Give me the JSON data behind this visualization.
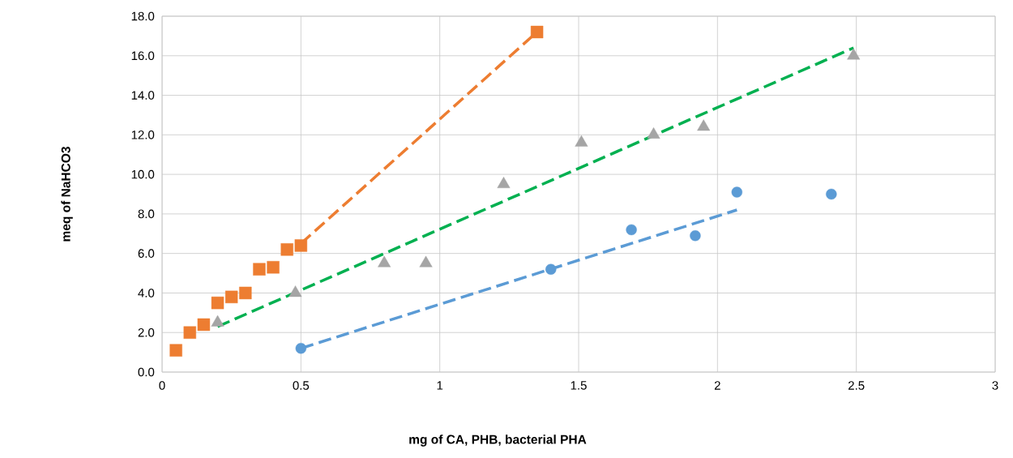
{
  "chart_data": {
    "type": "scatter",
    "xlabel": "mg of CA, PHB, bacterial PHA",
    "ylabel": "meq of NaHCO3",
    "xlim": [
      0,
      3
    ],
    "ylim": [
      0,
      18
    ],
    "xticks": [
      0,
      0.5,
      1,
      1.5,
      2,
      2.5,
      3
    ],
    "yticks": [
      {
        "value": 0,
        "label": "0.0"
      },
      {
        "value": 2,
        "label": "2.0"
      },
      {
        "value": 4,
        "label": "4.0"
      },
      {
        "value": 6,
        "label": "6.0"
      },
      {
        "value": 8,
        "label": "8.0"
      },
      {
        "value": 10,
        "label": "10.0"
      },
      {
        "value": 12,
        "label": "12.0"
      },
      {
        "value": 14,
        "label": "14.0"
      },
      {
        "value": 16,
        "label": "16.0"
      },
      {
        "value": 18,
        "label": "18.0"
      }
    ],
    "grid": true,
    "series": [
      {
        "marker": "square",
        "color": "#ed7d31",
        "x": [
          0.05,
          0.1,
          0.15,
          0.2,
          0.25,
          0.3,
          0.35,
          0.4,
          0.45,
          0.5,
          1.35
        ],
        "values": [
          1.1,
          2.0,
          2.4,
          3.5,
          3.8,
          4.0,
          5.2,
          5.3,
          6.2,
          6.4,
          17.2
        ]
      },
      {
        "marker": "triangle",
        "color": "#a5a5a5",
        "x": [
          0.2,
          0.48,
          0.8,
          0.95,
          1.23,
          1.51,
          1.77,
          1.95,
          2.49
        ],
        "values": [
          2.5,
          4.0,
          5.5,
          5.5,
          9.5,
          11.6,
          12.0,
          12.4,
          16.0
        ]
      },
      {
        "marker": "circle",
        "color": "#5b9bd5",
        "x": [
          0.5,
          1.4,
          1.69,
          1.92,
          2.07,
          2.41
        ],
        "values": [
          1.2,
          5.2,
          7.2,
          6.9,
          9.1,
          9.0
        ]
      },
      {
        "type": "line",
        "line_style": "dashed",
        "color": "#ed7d31",
        "x": [
          0.5,
          1.35
        ],
        "values": [
          6.5,
          17.2
        ]
      },
      {
        "type": "line",
        "line_style": "dashed",
        "color": "#00b050",
        "x": [
          0.2,
          2.49
        ],
        "values": [
          2.3,
          16.4
        ]
      },
      {
        "type": "line",
        "line_style": "dashed",
        "color": "#5b9bd5",
        "x": [
          0.5,
          2.07
        ],
        "values": [
          1.2,
          8.2
        ]
      }
    ]
  }
}
